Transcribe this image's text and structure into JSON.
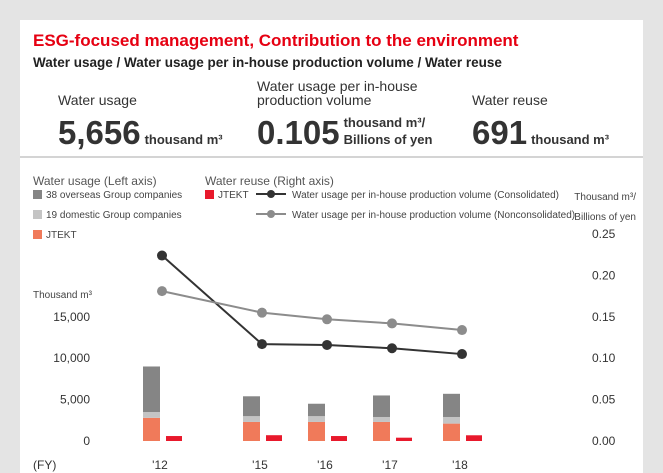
{
  "header": {
    "title": "ESG-focused management,  Contribution to the environment",
    "subtitle": "Water usage / Water usage per in-house production volume / Water reuse",
    "metrics": [
      {
        "label_lines": [
          "Water usage"
        ],
        "value": "5,656",
        "unit_lines": [
          "thousand m³"
        ]
      },
      {
        "label_lines": [
          "Water usage per in-house",
          "production volume"
        ],
        "value": "0.105",
        "unit_lines": [
          "thousand m³/",
          "Billions of yen"
        ]
      },
      {
        "label_lines": [
          "Water reuse"
        ],
        "value": "691",
        "unit_lines": [
          "thousand m³"
        ]
      }
    ]
  },
  "chart_data": {
    "type": "bar",
    "legend_groups": [
      "Water usage (Left axis)",
      "Water reuse (Right axis)"
    ],
    "xlabel": "(FY)",
    "ylabel": "Thousand m³",
    "y2label_lines": [
      "Thousand m³/",
      "Billions of yen"
    ],
    "categories": [
      "'12",
      "'15",
      "'16",
      "'17",
      "'18"
    ],
    "series": [
      {
        "name": "JTEKT",
        "color": "#f07a5a",
        "stack": "usage",
        "values": [
          2800,
          2300,
          2300,
          2300,
          2100
        ]
      },
      {
        "name": "19 domestic Group companies",
        "color": "#c4c4c4",
        "stack": "usage",
        "values": [
          700,
          700,
          700,
          600,
          800
        ]
      },
      {
        "name": "38 overseas Group companies",
        "color": "#858585",
        "stack": "usage",
        "values": [
          5500,
          2400,
          1500,
          2600,
          2800
        ]
      },
      {
        "name": "JTEKT",
        "color": "#e8192c",
        "stack": "reuse",
        "values": [
          600,
          700,
          600,
          400,
          691
        ]
      },
      {
        "name": "Water usage per in-house production volume (Consolidated)",
        "type": "line",
        "axis": "y2",
        "color": "#333333",
        "values": [
          0.224,
          0.117,
          0.116,
          0.112,
          0.105
        ]
      },
      {
        "name": "Water usage per in-house production volume (Nonconsolidated)",
        "type": "line",
        "axis": "y2",
        "color": "#8c8c8c",
        "values": [
          0.181,
          0.155,
          0.147,
          0.142,
          0.134
        ]
      }
    ],
    "ylim": [
      0,
      25000
    ],
    "yticks": [
      0,
      {
        "value": 5000,
        "label": "5,000"
      },
      {
        "value": 10000,
        "label": "10,000"
      },
      {
        "value": 15000,
        "label": "15,000"
      }
    ],
    "y2lim": [
      0,
      0.25
    ],
    "y2ticks": [
      {
        "value": 0,
        "label": "0.00"
      },
      {
        "value": 0.05,
        "label": "0.05"
      },
      {
        "value": 0.1,
        "label": "0.10"
      },
      {
        "value": 0.15,
        "label": "0.15"
      },
      {
        "value": 0.2,
        "label": "0.20"
      },
      {
        "value": 0.25,
        "label": "0.25"
      }
    ]
  }
}
